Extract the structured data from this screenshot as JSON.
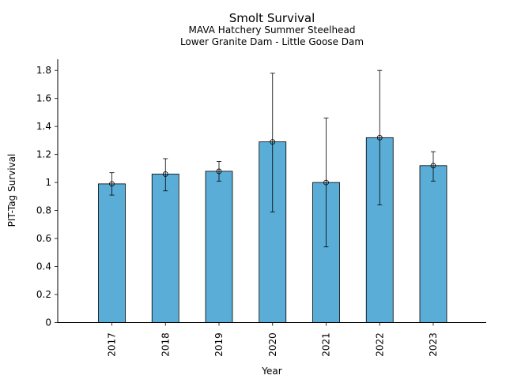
{
  "chart_data": {
    "type": "bar",
    "title": "Smolt Survival",
    "subtitle_lines": [
      "MAVA Hatchery Summer Steelhead",
      "Lower Granite Dam - Little Goose Dam"
    ],
    "xlabel": "Year",
    "ylabel": "PIT-Tag Survival",
    "categories": [
      "2017",
      "2018",
      "2019",
      "2020",
      "2021",
      "2022",
      "2023"
    ],
    "values": [
      0.99,
      1.06,
      1.08,
      1.29,
      1.0,
      1.32,
      1.12
    ],
    "error_low": [
      0.91,
      0.94,
      1.01,
      0.79,
      0.54,
      0.84,
      1.01
    ],
    "error_high": [
      1.07,
      1.17,
      1.15,
      1.78,
      1.46,
      1.8,
      1.22
    ],
    "ylim": [
      0,
      1.88
    ],
    "yticks": [
      0,
      0.2,
      0.4,
      0.6,
      0.8,
      1,
      1.2,
      1.4,
      1.6,
      1.8
    ],
    "ytick_labels": [
      "0",
      "0.2",
      "0.4",
      "0.6",
      "0.8",
      "1",
      "1.2",
      "1.4",
      "1.6",
      "1.8"
    ],
    "grid": false,
    "legend": "none",
    "colors": {
      "bar": "#5aadd6",
      "edge": "#000000"
    }
  }
}
